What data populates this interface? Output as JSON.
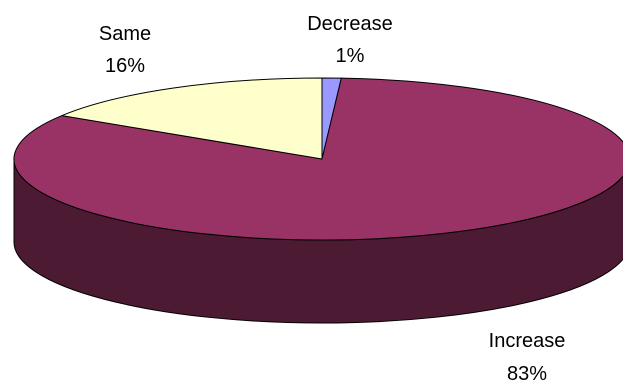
{
  "chart_data": {
    "type": "pie",
    "style": "3d",
    "title": "",
    "slices": [
      {
        "label": "Decrease",
        "value": 1,
        "value_label": "1%",
        "color": "#9999ff"
      },
      {
        "label": "Increase",
        "value": 83,
        "value_label": "83%",
        "color": "#993366"
      },
      {
        "label": "Same",
        "value": 16,
        "value_label": "16%",
        "color": "#ffffcc"
      }
    ],
    "legend": "none",
    "labels": "outside"
  }
}
